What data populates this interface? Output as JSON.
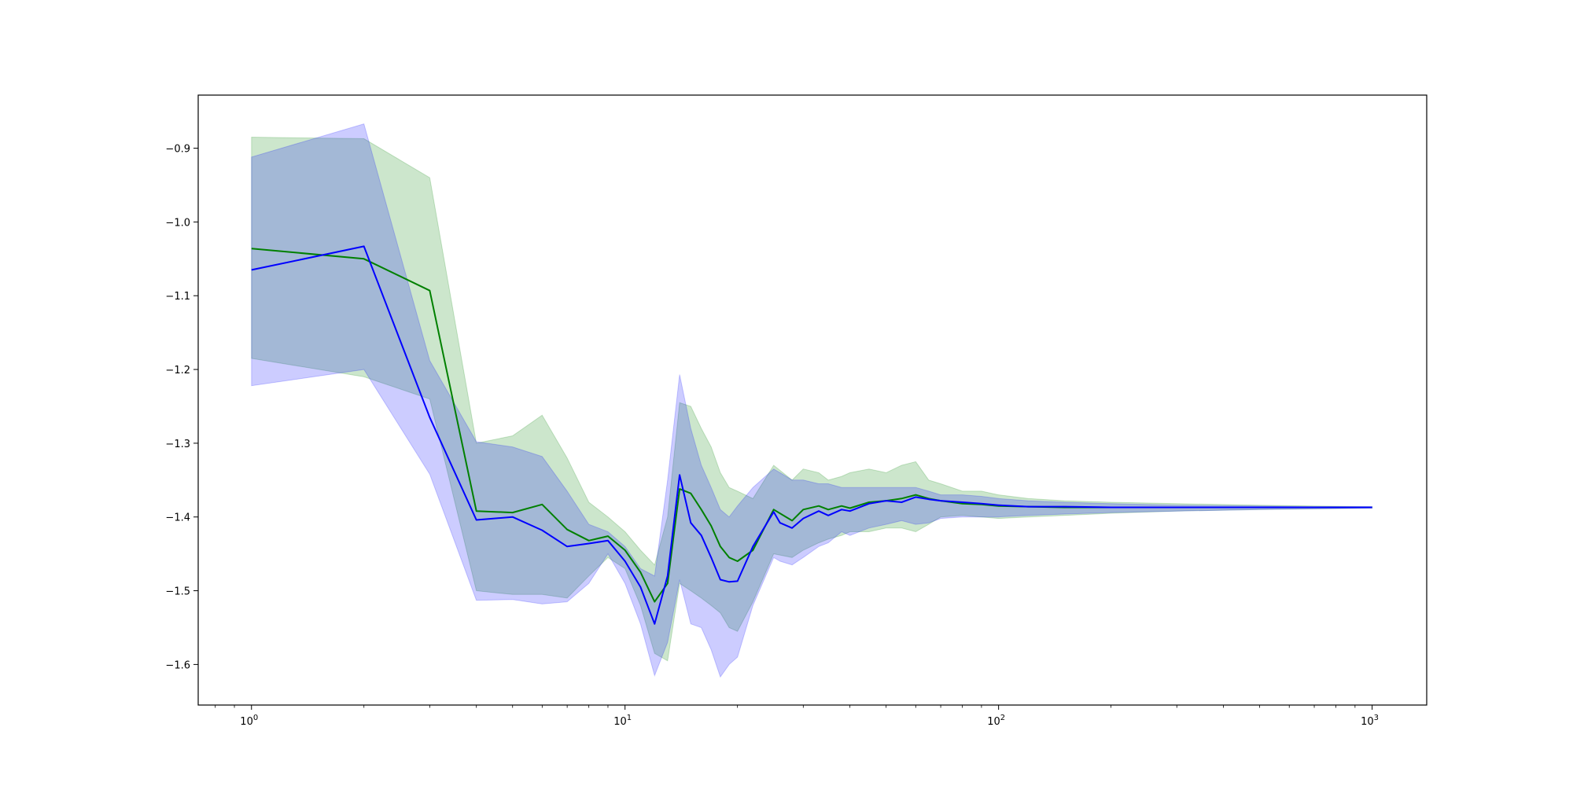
{
  "chart_data": {
    "type": "line",
    "title": "",
    "xlabel": "",
    "ylabel": "",
    "x_scale": "log",
    "xlim": [
      0.72,
      1400
    ],
    "ylim": [
      -1.655,
      -0.828
    ],
    "grid": false,
    "legend": "none",
    "x_ticks": [
      {
        "value": 1,
        "base": "10",
        "exp": "0"
      },
      {
        "value": 10,
        "base": "10",
        "exp": "1"
      },
      {
        "value": 100,
        "base": "10",
        "exp": "2"
      },
      {
        "value": 1000,
        "base": "10",
        "exp": "3"
      }
    ],
    "y_ticks": [
      {
        "value": -0.9,
        "label": "−0.9"
      },
      {
        "value": -1.0,
        "label": "−1.0"
      },
      {
        "value": -1.1,
        "label": "−1.1"
      },
      {
        "value": -1.2,
        "label": "−1.2"
      },
      {
        "value": -1.3,
        "label": "−1.3"
      },
      {
        "value": -1.4,
        "label": "−1.4"
      },
      {
        "value": -1.5,
        "label": "−1.5"
      },
      {
        "value": -1.6,
        "label": "−1.6"
      }
    ],
    "series": [
      {
        "color": "#008000",
        "band_color": "#008000",
        "band_opacity": 0.2,
        "x": [
          1,
          2,
          3,
          4,
          5,
          6,
          7,
          8,
          9,
          10,
          11,
          12,
          13,
          14,
          15,
          16,
          17,
          18,
          19,
          20,
          22,
          25,
          28,
          30,
          33,
          35,
          38,
          40,
          45,
          50,
          55,
          60,
          65,
          70,
          80,
          90,
          100,
          120,
          150,
          200,
          300,
          500,
          700,
          1000
        ],
        "y": [
          -1.036,
          -1.05,
          -1.093,
          -1.392,
          -1.394,
          -1.383,
          -1.417,
          -1.432,
          -1.426,
          -1.445,
          -1.475,
          -1.515,
          -1.49,
          -1.362,
          -1.368,
          -1.39,
          -1.412,
          -1.44,
          -1.455,
          -1.46,
          -1.445,
          -1.39,
          -1.405,
          -1.39,
          -1.385,
          -1.39,
          -1.385,
          -1.388,
          -1.38,
          -1.378,
          -1.375,
          -1.37,
          -1.375,
          -1.378,
          -1.382,
          -1.383,
          -1.385,
          -1.386,
          -1.387,
          -1.387,
          -1.387,
          -1.387,
          -1.387,
          -1.387
        ],
        "upper": [
          -0.885,
          -0.887,
          -0.94,
          -1.3,
          -1.29,
          -1.262,
          -1.32,
          -1.38,
          -1.4,
          -1.42,
          -1.445,
          -1.465,
          -1.4,
          -1.245,
          -1.25,
          -1.28,
          -1.305,
          -1.34,
          -1.36,
          -1.365,
          -1.375,
          -1.33,
          -1.35,
          -1.335,
          -1.34,
          -1.35,
          -1.345,
          -1.34,
          -1.335,
          -1.34,
          -1.33,
          -1.325,
          -1.35,
          -1.355,
          -1.365,
          -1.365,
          -1.37,
          -1.375,
          -1.378,
          -1.38,
          -1.382,
          -1.384,
          -1.385,
          -1.386
        ],
        "lower": [
          -1.185,
          -1.21,
          -1.24,
          -1.5,
          -1.505,
          -1.505,
          -1.51,
          -1.48,
          -1.455,
          -1.47,
          -1.52,
          -1.585,
          -1.595,
          -1.49,
          -1.5,
          -1.51,
          -1.52,
          -1.53,
          -1.55,
          -1.555,
          -1.515,
          -1.45,
          -1.455,
          -1.445,
          -1.435,
          -1.43,
          -1.425,
          -1.42,
          -1.42,
          -1.415,
          -1.415,
          -1.42,
          -1.41,
          -1.4,
          -1.398,
          -1.4,
          -1.402,
          -1.4,
          -1.398,
          -1.395,
          -1.392,
          -1.39,
          -1.389,
          -1.388
        ]
      },
      {
        "color": "#0000ff",
        "band_color": "#0000ff",
        "band_opacity": 0.2,
        "x": [
          1,
          2,
          3,
          4,
          5,
          6,
          7,
          8,
          9,
          10,
          11,
          12,
          13,
          14,
          15,
          16,
          17,
          18,
          19,
          20,
          22,
          25,
          26,
          28,
          30,
          33,
          35,
          38,
          40,
          45,
          50,
          55,
          60,
          65,
          70,
          80,
          90,
          100,
          120,
          150,
          200,
          300,
          500,
          700,
          1000
        ],
        "y": [
          -1.065,
          -1.033,
          -1.265,
          -1.404,
          -1.4,
          -1.418,
          -1.44,
          -1.436,
          -1.432,
          -1.46,
          -1.495,
          -1.545,
          -1.48,
          -1.343,
          -1.408,
          -1.425,
          -1.455,
          -1.485,
          -1.488,
          -1.487,
          -1.44,
          -1.393,
          -1.408,
          -1.415,
          -1.402,
          -1.392,
          -1.398,
          -1.39,
          -1.392,
          -1.382,
          -1.378,
          -1.38,
          -1.373,
          -1.376,
          -1.378,
          -1.38,
          -1.382,
          -1.384,
          -1.386,
          -1.386,
          -1.387,
          -1.387,
          -1.387,
          -1.387,
          -1.387
        ],
        "upper": [
          -0.912,
          -0.867,
          -1.188,
          -1.298,
          -1.305,
          -1.318,
          -1.365,
          -1.41,
          -1.42,
          -1.44,
          -1.47,
          -1.48,
          -1.35,
          -1.207,
          -1.28,
          -1.33,
          -1.36,
          -1.39,
          -1.4,
          -1.385,
          -1.36,
          -1.335,
          -1.34,
          -1.35,
          -1.35,
          -1.355,
          -1.355,
          -1.36,
          -1.36,
          -1.36,
          -1.36,
          -1.36,
          -1.36,
          -1.365,
          -1.37,
          -1.37,
          -1.372,
          -1.375,
          -1.378,
          -1.38,
          -1.382,
          -1.384,
          -1.385,
          -1.386,
          -1.386
        ],
        "lower": [
          -1.222,
          -1.2,
          -1.342,
          -1.513,
          -1.512,
          -1.518,
          -1.515,
          -1.49,
          -1.45,
          -1.49,
          -1.545,
          -1.615,
          -1.57,
          -1.485,
          -1.545,
          -1.55,
          -1.58,
          -1.617,
          -1.6,
          -1.59,
          -1.52,
          -1.455,
          -1.46,
          -1.465,
          -1.455,
          -1.44,
          -1.435,
          -1.42,
          -1.425,
          -1.415,
          -1.41,
          -1.405,
          -1.41,
          -1.408,
          -1.402,
          -1.4,
          -1.4,
          -1.4,
          -1.398,
          -1.396,
          -1.394,
          -1.392,
          -1.39,
          -1.389,
          -1.388
        ]
      }
    ]
  }
}
